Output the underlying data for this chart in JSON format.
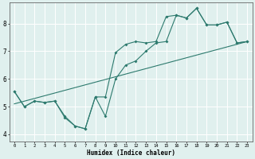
{
  "background_color": "#e0f0ee",
  "grid_color": "#ffffff",
  "line_color": "#2d7a6e",
  "x_label": "Humidex (Indice chaleur)",
  "xlim": [
    -0.5,
    23.5
  ],
  "ylim": [
    3.75,
    8.75
  ],
  "yticks": [
    4,
    5,
    6,
    7,
    8
  ],
  "xticks": [
    0,
    1,
    2,
    3,
    4,
    5,
    6,
    7,
    8,
    9,
    10,
    11,
    12,
    13,
    14,
    15,
    16,
    17,
    18,
    19,
    20,
    21,
    22,
    23
  ],
  "line1_x": [
    0,
    1,
    2,
    3,
    4,
    5,
    6,
    7,
    8,
    9,
    10,
    11,
    12,
    13,
    14,
    15,
    16,
    17,
    18,
    19,
    20,
    21,
    22,
    23
  ],
  "line1_y": [
    5.55,
    5.0,
    5.2,
    5.15,
    5.2,
    4.6,
    4.3,
    4.2,
    5.35,
    5.35,
    6.95,
    7.25,
    7.35,
    7.3,
    7.35,
    8.25,
    8.3,
    8.2,
    8.55,
    7.95,
    7.95,
    8.05,
    7.3,
    7.35
  ],
  "line2_x": [
    0,
    1,
    2,
    3,
    4,
    5,
    6,
    7,
    8,
    9,
    10,
    11,
    12,
    13,
    14,
    15,
    16,
    17,
    18,
    19,
    20,
    21,
    22,
    23
  ],
  "line2_y": [
    5.55,
    5.0,
    5.2,
    5.15,
    5.2,
    4.65,
    4.3,
    4.2,
    5.35,
    4.65,
    6.0,
    6.5,
    6.65,
    7.0,
    7.3,
    7.35,
    8.3,
    8.2,
    8.55,
    7.95,
    7.95,
    8.05,
    7.3,
    7.35
  ],
  "line3_x": [
    0,
    23
  ],
  "line3_y": [
    5.1,
    7.35
  ],
  "marker_size": 2.0,
  "line_width": 0.8,
  "tick_fontsize_x": 4.0,
  "tick_fontsize_y": 5.5,
  "xlabel_fontsize": 5.5
}
